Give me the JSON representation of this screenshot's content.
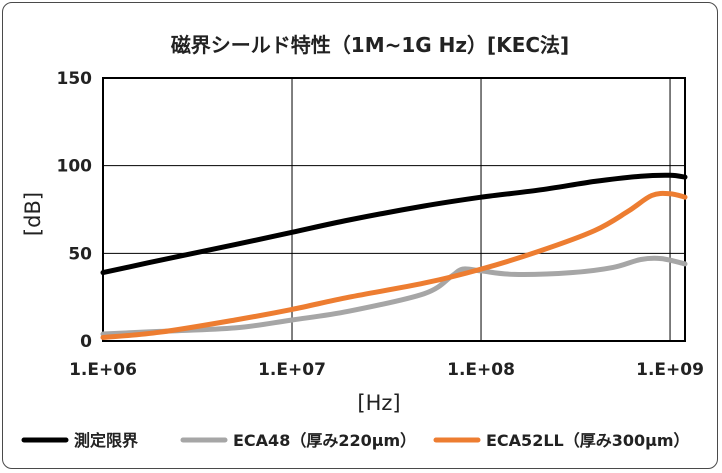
{
  "chart_data": {
    "type": "line",
    "title": "磁界シールド特性（1M~1G Hz）[KEC法]",
    "xlabel": "[Hz]",
    "ylabel": "[dB]",
    "x_scale": "log",
    "xlim": [
      1000000,
      1200000000
    ],
    "ylim": [
      0,
      150
    ],
    "x_ticks": [
      {
        "value": 1000000,
        "label": "1.E+06"
      },
      {
        "value": 10000000,
        "label": "1.E+07"
      },
      {
        "value": 100000000,
        "label": "1.E+08"
      },
      {
        "value": 1000000000,
        "label": "1.E+09"
      }
    ],
    "y_ticks": [
      {
        "value": 0,
        "label": "0"
      },
      {
        "value": 50,
        "label": "50"
      },
      {
        "value": 100,
        "label": "100"
      },
      {
        "value": 150,
        "label": "150"
      }
    ],
    "grid": true,
    "legend_position": "bottom",
    "series": [
      {
        "name": "測定限界",
        "color": "#000000",
        "points": [
          [
            1000000,
            39
          ],
          [
            2000000,
            46
          ],
          [
            5000000,
            55
          ],
          [
            10000000,
            62
          ],
          [
            20000000,
            69
          ],
          [
            50000000,
            77
          ],
          [
            100000000,
            82
          ],
          [
            200000000,
            86
          ],
          [
            400000000,
            91
          ],
          [
            700000000,
            94
          ],
          [
            1000000000,
            94.5
          ],
          [
            1200000000,
            93.5
          ]
        ]
      },
      {
        "name": "ECA48（厚み220μm）",
        "color": "#a6a6a6",
        "points": [
          [
            1000000,
            4
          ],
          [
            2000000,
            5.5
          ],
          [
            5000000,
            7.5
          ],
          [
            10000000,
            12
          ],
          [
            20000000,
            17
          ],
          [
            50000000,
            27
          ],
          [
            70000000,
            37
          ],
          [
            80000000,
            41
          ],
          [
            100000000,
            40
          ],
          [
            150000000,
            38
          ],
          [
            300000000,
            39
          ],
          [
            500000000,
            42
          ],
          [
            700000000,
            46.5
          ],
          [
            900000000,
            47
          ],
          [
            1200000000,
            44
          ]
        ]
      },
      {
        "name": "ECA52LL（厚み300μm）",
        "color": "#ed7d31",
        "points": [
          [
            1000000,
            2
          ],
          [
            2000000,
            5
          ],
          [
            5000000,
            12
          ],
          [
            10000000,
            18
          ],
          [
            20000000,
            25
          ],
          [
            50000000,
            33
          ],
          [
            100000000,
            41
          ],
          [
            200000000,
            51
          ],
          [
            400000000,
            63
          ],
          [
            600000000,
            74
          ],
          [
            800000000,
            83
          ],
          [
            1000000000,
            84
          ],
          [
            1200000000,
            82
          ]
        ]
      }
    ]
  }
}
